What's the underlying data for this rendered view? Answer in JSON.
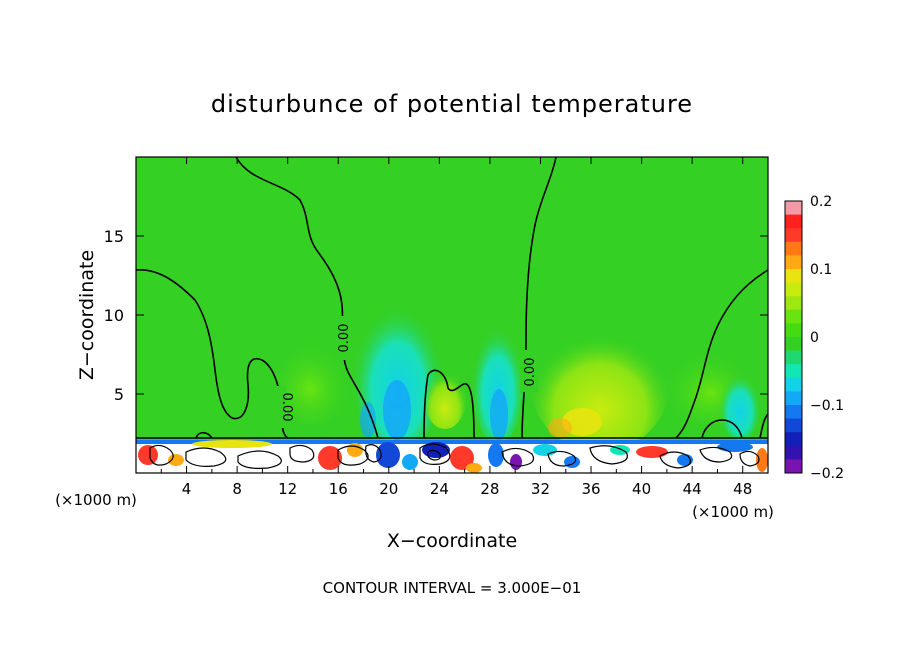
{
  "chart_data": {
    "type": "heatmap",
    "title": "disturbunce of potential temperature",
    "xlabel": "X−coordinate",
    "ylabel": "Z−coordinate",
    "x_unit_left": "(×1000 m)",
    "x_unit_right": "(×1000 m)",
    "x_ticks": [
      "4",
      "8",
      "12",
      "16",
      "20",
      "24",
      "28",
      "32",
      "36",
      "40",
      "44",
      "48"
    ],
    "y_ticks": [
      "5",
      "10",
      "15"
    ],
    "xlim": [
      0,
      50
    ],
    "ylim": [
      0,
      20
    ],
    "colorbar": {
      "labels": [
        "0.2",
        "0.1",
        "0",
        "−0.1",
        "−0.2"
      ],
      "range": [
        -0.2,
        0.2
      ],
      "colors": [
        "#f49aa6",
        "#ff2020",
        "#ff3a2a",
        "#ff7a14",
        "#ffaa14",
        "#e8e410",
        "#c8ec10",
        "#9ce810",
        "#6ae410",
        "#44dc10",
        "#34d024",
        "#20d870",
        "#12e6b4",
        "#12d2e8",
        "#14a8f8",
        "#1478f0",
        "#1248d8",
        "#1020b8",
        "#3412b0",
        "#7a14b0"
      ]
    },
    "contour_labels": [
      "0.00",
      "0.00",
      "0.00"
    ],
    "footer": "CONTOUR INTERVAL = 3.000E−01"
  }
}
